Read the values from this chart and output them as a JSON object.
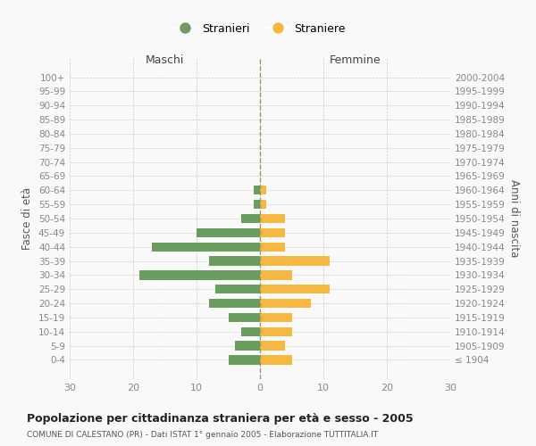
{
  "age_groups": [
    "100+",
    "95-99",
    "90-94",
    "85-89",
    "80-84",
    "75-79",
    "70-74",
    "65-69",
    "60-64",
    "55-59",
    "50-54",
    "45-49",
    "40-44",
    "35-39",
    "30-34",
    "25-29",
    "20-24",
    "15-19",
    "10-14",
    "5-9",
    "0-4"
  ],
  "birth_years": [
    "≤ 1904",
    "1905-1909",
    "1910-1914",
    "1915-1919",
    "1920-1924",
    "1925-1929",
    "1930-1934",
    "1935-1939",
    "1940-1944",
    "1945-1949",
    "1950-1954",
    "1955-1959",
    "1960-1964",
    "1965-1969",
    "1970-1974",
    "1975-1979",
    "1980-1984",
    "1985-1989",
    "1990-1994",
    "1995-1999",
    "2000-2004"
  ],
  "males": [
    0,
    0,
    0,
    0,
    0,
    0,
    0,
    0,
    1,
    1,
    3,
    10,
    17,
    8,
    19,
    7,
    8,
    5,
    3,
    4,
    5
  ],
  "females": [
    0,
    0,
    0,
    0,
    0,
    0,
    0,
    0,
    1,
    1,
    4,
    4,
    4,
    11,
    5,
    11,
    8,
    5,
    5,
    4,
    5
  ],
  "male_color": "#6a9e5e",
  "female_color": "#f5b942",
  "title": "Popolazione per cittadinanza straniera per età e sesso - 2005",
  "subtitle": "COMUNE DI CALESTANO (PR) - Dati ISTAT 1° gennaio 2005 - Elaborazione TUTTITALIA.IT",
  "ylabel_left": "Fasce di età",
  "ylabel_right": "Anni di nascita",
  "xlabel_left": "Maschi",
  "xlabel_right": "Femmine",
  "legend_male": "Stranieri",
  "legend_female": "Straniere",
  "xlim": 30,
  "background_color": "#f9f9f9",
  "grid_color": "#cccccc",
  "axis_label_color": "#555555",
  "tick_color": "#888888"
}
